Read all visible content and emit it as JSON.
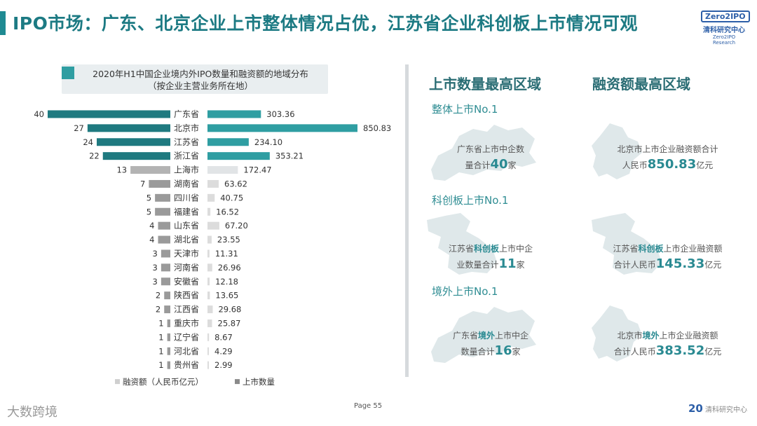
{
  "header": {
    "title": "IPO市场：广东、北京企业上市整体情况占优，江苏省企业科创板上市情况可观"
  },
  "logo": {
    "box": "Zero2IPO",
    "cn": "清科研究中心",
    "en": "Zero2IPO Research"
  },
  "chart_data": {
    "type": "bar",
    "title": "2020年H1中国企业境内外IPO数量和融资额的地域分布\n（按企业主营业务所在地）",
    "categories": [
      "广东省",
      "北京市",
      "江苏省",
      "浙江省",
      "上海市",
      "湖南省",
      "四川省",
      "福建省",
      "山东省",
      "湖北省",
      "天津市",
      "河南省",
      "安徽省",
      "陕西省",
      "江西省",
      "重庆市",
      "辽宁省",
      "河北省",
      "贵州省"
    ],
    "series": [
      {
        "name": "上市数量",
        "values": [
          40,
          27,
          24,
          22,
          13,
          7,
          5,
          5,
          4,
          4,
          3,
          3,
          3,
          2,
          2,
          1,
          1,
          1,
          1
        ]
      },
      {
        "name": "融资额（人民币亿元）",
        "values": [
          303.36,
          850.83,
          234.1,
          353.21,
          172.47,
          63.62,
          40.75,
          16.52,
          67.2,
          23.55,
          11.31,
          26.96,
          12.18,
          13.65,
          29.68,
          25.87,
          8.67,
          4.29,
          2.99
        ]
      }
    ],
    "value_labels": [
      "303.36",
      "850.83",
      "234.10",
      "353.21",
      "172.47",
      "63.62",
      "40.75",
      "16.52",
      "67.20",
      "23.55",
      "11.31",
      "26.96",
      "12.18",
      "13.65",
      "29.68",
      "25.87",
      "8.67",
      "4.29",
      "2.99"
    ],
    "legend_position": "bottom",
    "legend": [
      "融资额（人民币亿元）",
      "上市数量"
    ]
  },
  "right_panel": {
    "col1_heading": "上市数量最高区域",
    "col2_heading": "融资额最高区域",
    "sections": [
      {
        "subtitle": "整体上市No.1",
        "left": {
          "line1": "广东省上市中企数",
          "line2a": "量合计",
          "num": "40",
          "line2b": "家"
        },
        "right": {
          "line1": "北京市上市企业融资额合计",
          "line2a": "人民币",
          "num": "850.83",
          "line2b": "亿元"
        }
      },
      {
        "subtitle": "科创板上市No.1",
        "left": {
          "line1a": "江苏省",
          "hl": "科创板",
          "line1b": "上市中企",
          "line2a": "业数量合计",
          "num": "11",
          "line2b": "家"
        },
        "right": {
          "line1a": "江苏省",
          "hl": "科创板",
          "line1b": "上市企业融资额",
          "line2a": "合计人民币",
          "num": "145.33",
          "line2b": "亿元"
        }
      },
      {
        "subtitle": "境外上市No.1",
        "left": {
          "line1a": "广东省",
          "hl": "境外",
          "line1b": "上市中企",
          "line2a": "数量合计",
          "num": "16",
          "line2b": "家"
        },
        "right": {
          "line1a": "北京市",
          "hl": "境外",
          "line1b": "上市企业融资额",
          "line2a": "合计人民币",
          "num": "383.52",
          "line2b": "亿元"
        }
      }
    ]
  },
  "footer": {
    "page": "Page  55",
    "watermark": "大数跨境",
    "brand_num": "20",
    "brand_text": "清科研究中心"
  },
  "colors": {
    "teal_dark": "#1f7a80",
    "teal": "#2f9ea2",
    "gray_light": "#c9c9c9",
    "gray_dark": "#9a9a9a",
    "map": "#dfe8ea"
  }
}
